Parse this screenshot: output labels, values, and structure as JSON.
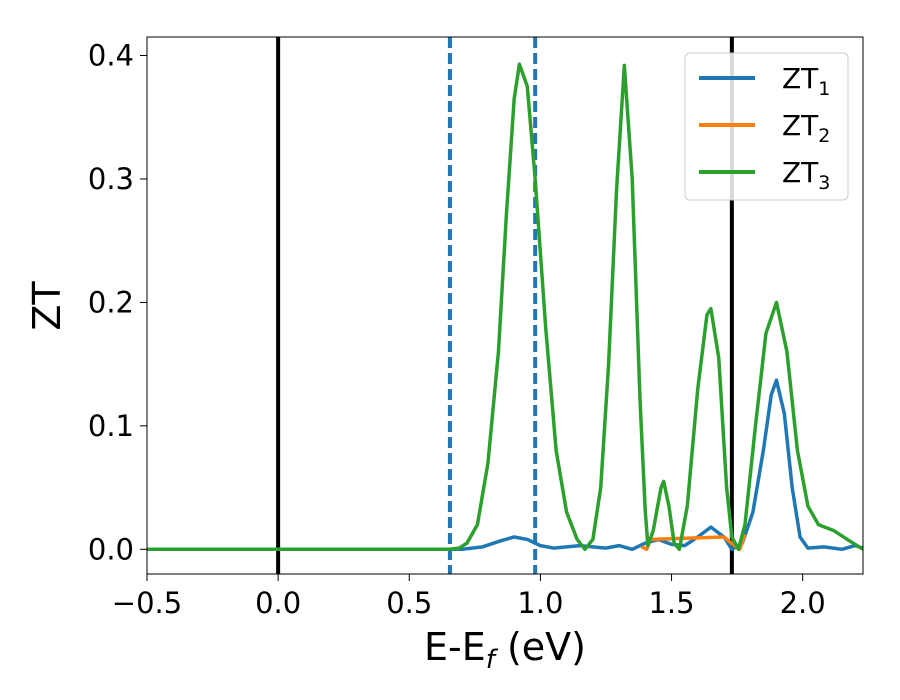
{
  "chart_data": {
    "type": "line",
    "xlabel": "E-E",
    "xlabel_sub": "f",
    "xlabel_unit": " (eV)",
    "ylabel": "ZT",
    "xlim": [
      -0.5,
      2.23
    ],
    "ylim": [
      -0.02,
      0.415
    ],
    "xticks": [
      -0.5,
      0.0,
      0.5,
      1.0,
      1.5,
      2.0
    ],
    "xtick_labels": [
      "−0.5",
      "0.0",
      "0.5",
      "1.0",
      "1.5",
      "2.0"
    ],
    "yticks": [
      0.0,
      0.1,
      0.2,
      0.3,
      0.4
    ],
    "ytick_labels": [
      "0.0",
      "0.1",
      "0.2",
      "0.3",
      "0.4"
    ],
    "grid": false,
    "legend_position": "top-right",
    "vlines": [
      {
        "x": 0.0,
        "style": "solid",
        "color": "#000000"
      },
      {
        "x": 1.73,
        "style": "solid",
        "color": "#000000"
      },
      {
        "x": 0.655,
        "style": "dashed",
        "color": "#1f77b4"
      },
      {
        "x": 0.98,
        "style": "dashed",
        "color": "#1f77b4"
      }
    ],
    "series": [
      {
        "name": "ZT",
        "sub": "1",
        "color": "#1f77b4",
        "points": [
          [
            -0.5,
            0
          ],
          [
            0.6,
            0
          ],
          [
            0.7,
            0.0
          ],
          [
            0.78,
            0.002
          ],
          [
            0.85,
            0.007
          ],
          [
            0.9,
            0.01
          ],
          [
            0.95,
            0.008
          ],
          [
            1.0,
            0.003
          ],
          [
            1.05,
            0.001
          ],
          [
            1.1,
            0.002
          ],
          [
            1.15,
            0.003
          ],
          [
            1.2,
            0.002
          ],
          [
            1.25,
            0.001
          ],
          [
            1.3,
            0.003
          ],
          [
            1.35,
            0.0
          ],
          [
            1.4,
            0.005
          ],
          [
            1.45,
            0.008
          ],
          [
            1.5,
            0.004
          ],
          [
            1.55,
            0.003
          ],
          [
            1.6,
            0.01
          ],
          [
            1.65,
            0.018
          ],
          [
            1.7,
            0.01
          ],
          [
            1.73,
            0.0
          ],
          [
            1.77,
            0.005
          ],
          [
            1.81,
            0.03
          ],
          [
            1.85,
            0.08
          ],
          [
            1.88,
            0.125
          ],
          [
            1.9,
            0.137
          ],
          [
            1.93,
            0.11
          ],
          [
            1.96,
            0.05
          ],
          [
            1.99,
            0.01
          ],
          [
            2.02,
            0.001
          ],
          [
            2.08,
            0.002
          ],
          [
            2.15,
            0.0
          ],
          [
            2.2,
            0.003
          ],
          [
            2.23,
            0.001
          ]
        ]
      },
      {
        "name": "ZT",
        "sub": "2",
        "color": "#ff7f0e",
        "points": [
          [
            1.385,
            0.002
          ],
          [
            1.405,
            0.0
          ],
          [
            1.42,
            0.008
          ],
          [
            1.7,
            0.01
          ],
          [
            1.74,
            0.003
          ],
          [
            1.76,
            0.0
          ],
          [
            1.78,
            0.012
          ]
        ]
      },
      {
        "name": "ZT",
        "sub": "3",
        "color": "#2ca02c",
        "points": [
          [
            -0.5,
            0
          ],
          [
            0.65,
            0
          ],
          [
            0.69,
            0.001
          ],
          [
            0.72,
            0.005
          ],
          [
            0.76,
            0.02
          ],
          [
            0.8,
            0.07
          ],
          [
            0.84,
            0.16
          ],
          [
            0.87,
            0.27
          ],
          [
            0.9,
            0.365
          ],
          [
            0.92,
            0.393
          ],
          [
            0.95,
            0.375
          ],
          [
            0.98,
            0.3
          ],
          [
            1.02,
            0.18
          ],
          [
            1.06,
            0.08
          ],
          [
            1.1,
            0.03
          ],
          [
            1.14,
            0.008
          ],
          [
            1.17,
            0.0
          ],
          [
            1.2,
            0.008
          ],
          [
            1.23,
            0.05
          ],
          [
            1.26,
            0.15
          ],
          [
            1.29,
            0.29
          ],
          [
            1.32,
            0.392
          ],
          [
            1.35,
            0.3
          ],
          [
            1.38,
            0.12
          ],
          [
            1.4,
            0.03
          ],
          [
            1.41,
            0.003
          ],
          [
            1.43,
            0.015
          ],
          [
            1.46,
            0.05
          ],
          [
            1.47,
            0.055
          ],
          [
            1.49,
            0.035
          ],
          [
            1.51,
            0.005
          ],
          [
            1.53,
            0.0
          ],
          [
            1.56,
            0.035
          ],
          [
            1.6,
            0.13
          ],
          [
            1.635,
            0.19
          ],
          [
            1.65,
            0.195
          ],
          [
            1.68,
            0.155
          ],
          [
            1.71,
            0.05
          ],
          [
            1.73,
            0.01
          ],
          [
            1.755,
            0.0
          ],
          [
            1.78,
            0.02
          ],
          [
            1.82,
            0.1
          ],
          [
            1.86,
            0.175
          ],
          [
            1.9,
            0.2
          ],
          [
            1.94,
            0.16
          ],
          [
            1.98,
            0.08
          ],
          [
            2.02,
            0.035
          ],
          [
            2.06,
            0.02
          ],
          [
            2.12,
            0.015
          ],
          [
            2.17,
            0.008
          ],
          [
            2.23,
            0.0
          ]
        ]
      }
    ]
  }
}
